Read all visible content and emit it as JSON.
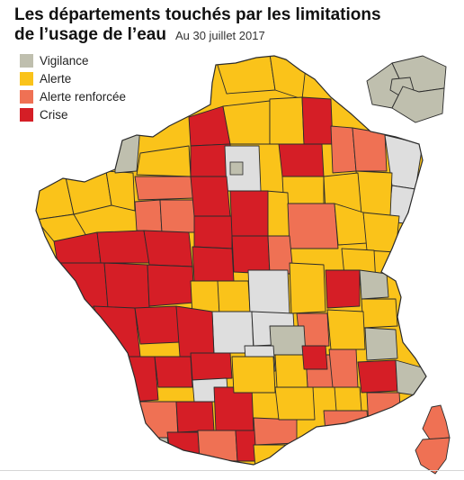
{
  "title_line1": "Les départements touchés par les limitations",
  "title_line2": "de l’usage de l’eau",
  "subtitle": "Au 30 juillet 2017",
  "legend": [
    {
      "label": "Vigilance",
      "color": "#bfbfae"
    },
    {
      "label": "Alerte",
      "color": "#fac31a"
    },
    {
      "label": "Alerte renforcée",
      "color": "#ef7154"
    },
    {
      "label": "Crise",
      "color": "#d51e26"
    }
  ],
  "colors": {
    "Vigilance": "#bfbfae",
    "Alerte": "#fac31a",
    "Alerte renforcée": "#ef7154",
    "Crise": "#d51e26",
    "Aucune": "#dedede"
  }
}
